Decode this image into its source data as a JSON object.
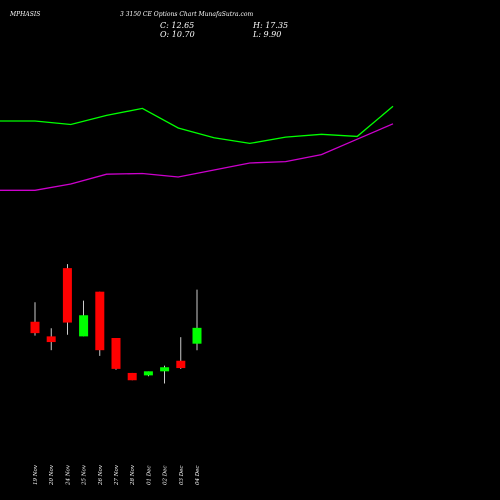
{
  "header": {
    "symbol": "MPHASIS",
    "subtitle": "3 3150 CE Options Chart MunafaSutra.com",
    "close_label": "C: 12.65",
    "high_label": "H: 17.35",
    "open_label": "O: 10.70",
    "low_label": "L: 9.90"
  },
  "colors": {
    "background": "#000000",
    "bull": "#00ff00",
    "bear": "#ff0000",
    "wick": "#ffffff",
    "upper_line": "#00ff00",
    "lower_line": "#cc00cc",
    "text": "#ffffff"
  },
  "chart_data": {
    "type": "candlestick",
    "categories": [
      "19 Nov",
      "20 Nov",
      "24 Nov",
      "25 Nov",
      "26 Nov",
      "27 Nov",
      "28 Nov",
      "01 Dec",
      "02 Dec",
      "03 Dec",
      "04 Dec"
    ],
    "candles": [
      {
        "open": 13.4,
        "high": 15.8,
        "low": 11.7,
        "close": 12.0,
        "dir": "down"
      },
      {
        "open": 11.6,
        "high": 12.6,
        "low": 9.9,
        "close": 10.9,
        "dir": "down"
      },
      {
        "open": 20.0,
        "high": 20.5,
        "low": 11.8,
        "close": 13.3,
        "dir": "down"
      },
      {
        "open": 11.6,
        "high": 16.0,
        "low": 11.6,
        "close": 14.2,
        "dir": "up"
      },
      {
        "open": 17.1,
        "high": 17.1,
        "low": 9.2,
        "close": 9.9,
        "dir": "down"
      },
      {
        "open": 11.4,
        "high": 11.4,
        "low": 7.5,
        "close": 7.6,
        "dir": "down"
      },
      {
        "open": 7.1,
        "high": 7.1,
        "low": 6.2,
        "close": 6.2,
        "dir": "down"
      },
      {
        "open": 6.8,
        "high": 7.3,
        "low": 6.7,
        "close": 7.3,
        "dir": "up"
      },
      {
        "open": 7.3,
        "high": 8.0,
        "low": 5.8,
        "close": 7.8,
        "dir": "up"
      },
      {
        "open": 8.6,
        "high": 11.5,
        "low": 7.6,
        "close": 7.7,
        "dir": "down"
      },
      {
        "open": 10.7,
        "high": 17.35,
        "low": 9.9,
        "close": 12.65,
        "dir": "up"
      }
    ],
    "upper_line": [
      85.0,
      85.0,
      82.5,
      89.0,
      94.0,
      80.0,
      73.0,
      69.0,
      73.5,
      75.5,
      74.0,
      95.5
    ],
    "lower_line": [
      35.5,
      35.5,
      40.0,
      47.0,
      47.5,
      45.0,
      50.0,
      55.0,
      56.0,
      61.0,
      72.0,
      83.0
    ],
    "ylim": [
      5.0,
      21.0
    ]
  }
}
